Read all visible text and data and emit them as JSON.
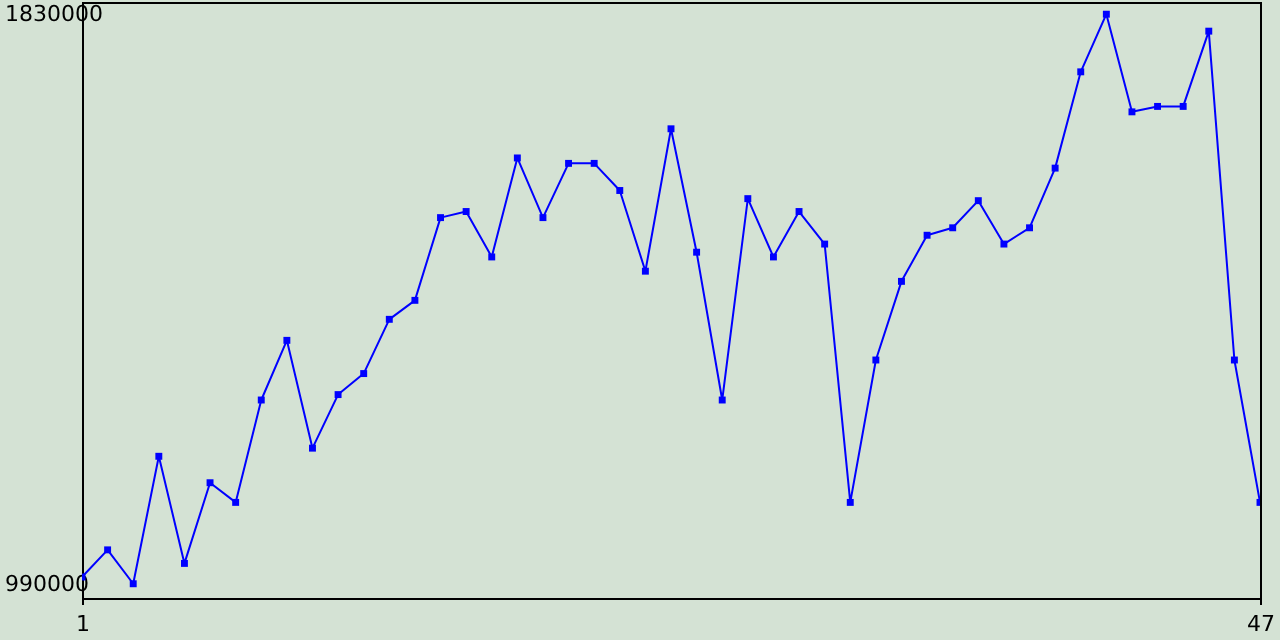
{
  "chart_data": {
    "type": "line",
    "x": [
      1,
      2,
      3,
      4,
      5,
      6,
      7,
      8,
      9,
      10,
      11,
      12,
      13,
      14,
      15,
      16,
      17,
      18,
      19,
      20,
      21,
      22,
      23,
      24,
      25,
      26,
      27,
      28,
      29,
      30,
      31,
      32,
      33,
      34,
      35,
      36,
      37,
      38,
      39,
      40,
      41,
      42,
      43,
      44,
      45,
      46,
      47
    ],
    "series": [
      {
        "color": "#0000ff",
        "values": [
          1000000,
          1040000,
          990000,
          1178000,
          1020000,
          1139000,
          1110000,
          1261000,
          1349000,
          1190000,
          1269000,
          1300000,
          1380000,
          1408000,
          1530000,
          1539000,
          1472000,
          1618000,
          1530000,
          1610000,
          1610000,
          1570000,
          1451000,
          1661000,
          1479000,
          1261000,
          1558000,
          1472000,
          1539000,
          1491000,
          1110000,
          1320000,
          1436000,
          1504000,
          1515000,
          1555000,
          1491000,
          1515000,
          1603000,
          1745000,
          1830000,
          1686000,
          1694000,
          1694000,
          1805000,
          1320000,
          1110000
        ]
      }
    ],
    "xlim": [
      1,
      47
    ],
    "xticks": [
      1,
      47
    ],
    "ylim": [
      969000,
      1848000
    ],
    "yticks": [
      {
        "value": 990000,
        "label": "990000"
      },
      {
        "value": 1830000,
        "label": "1830000"
      }
    ],
    "grid": false,
    "marker": "square",
    "line_style": "solid"
  }
}
